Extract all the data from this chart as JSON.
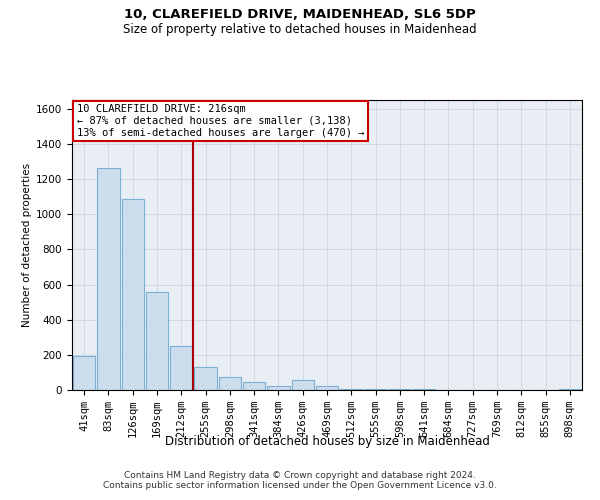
{
  "title1": "10, CLAREFIELD DRIVE, MAIDENHEAD, SL6 5DP",
  "title2": "Size of property relative to detached houses in Maidenhead",
  "xlabel": "Distribution of detached houses by size in Maidenhead",
  "ylabel": "Number of detached properties",
  "footer1": "Contains HM Land Registry data © Crown copyright and database right 2024.",
  "footer2": "Contains public sector information licensed under the Open Government Licence v3.0.",
  "annotation_line1": "10 CLAREFIELD DRIVE: 216sqm",
  "annotation_line2": "← 87% of detached houses are smaller (3,138)",
  "annotation_line3": "13% of semi-detached houses are larger (470) →",
  "red_line_x": 4.5,
  "bar_color": "#ccdded",
  "bar_edge_color": "#7bafd4",
  "red_line_color": "#aa0000",
  "grid_color": "#d0d8e0",
  "background_color": "#e8eef4",
  "categories": [
    "41sqm",
    "83sqm",
    "126sqm",
    "169sqm",
    "212sqm",
    "255sqm",
    "298sqm",
    "341sqm",
    "384sqm",
    "426sqm",
    "469sqm",
    "512sqm",
    "555sqm",
    "598sqm",
    "641sqm",
    "684sqm",
    "727sqm",
    "769sqm",
    "812sqm",
    "855sqm",
    "898sqm"
  ],
  "values": [
    195,
    1265,
    1085,
    555,
    250,
    130,
    75,
    45,
    20,
    55,
    20,
    5,
    4,
    3,
    3,
    2,
    2,
    2,
    2,
    2,
    5
  ],
  "ylim": [
    0,
    1650
  ],
  "yticks": [
    0,
    200,
    400,
    600,
    800,
    1000,
    1200,
    1400,
    1600
  ],
  "title1_fontsize": 9.5,
  "title2_fontsize": 8.5,
  "xlabel_fontsize": 8.5,
  "ylabel_fontsize": 7.5,
  "tick_fontsize": 7.5,
  "footer_fontsize": 6.5
}
